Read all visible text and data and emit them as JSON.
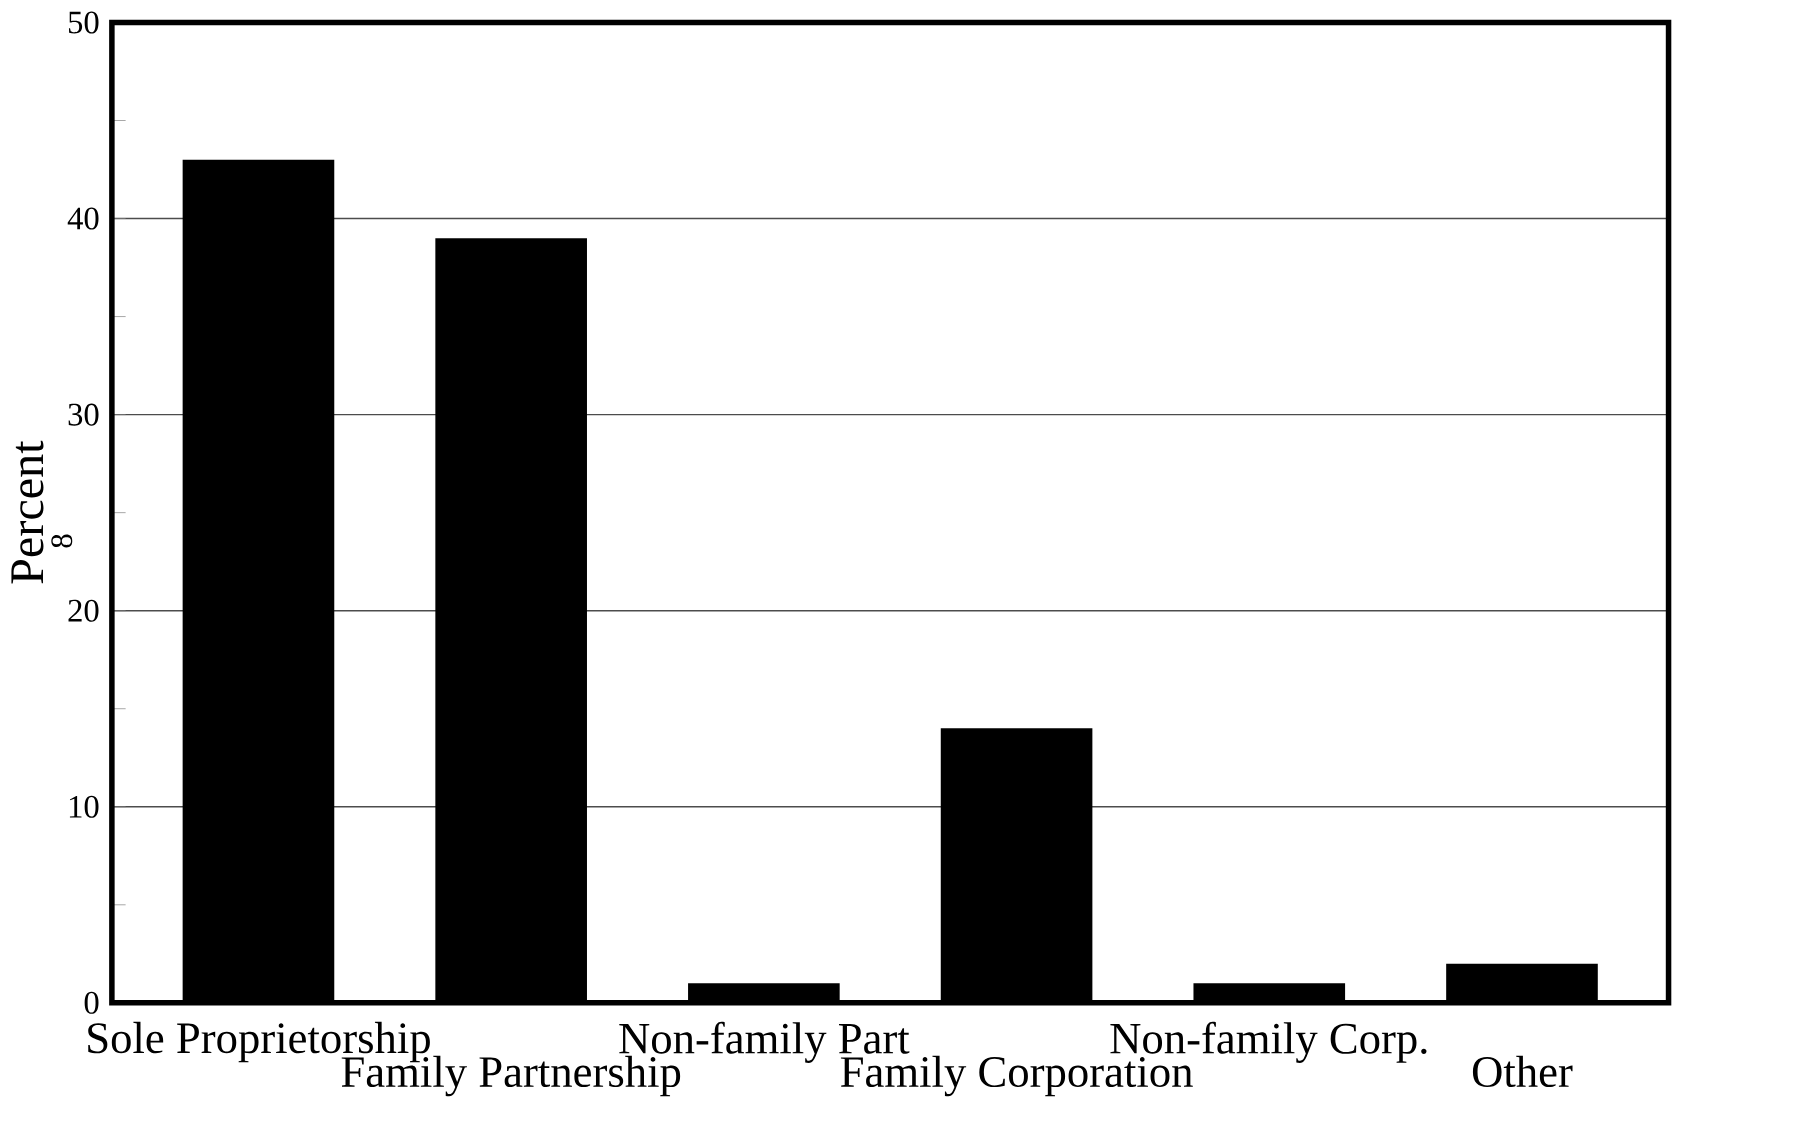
{
  "chart_data": {
    "type": "bar",
    "ylabel": "Percent",
    "categories": [
      "Sole Proprietorship",
      "Family Partnership",
      "Non-family Part",
      "Family Corporation",
      "Non-family Corp.",
      "Other"
    ],
    "values": [
      43,
      39,
      1,
      14,
      1,
      2
    ],
    "color": "#000000",
    "ylim": [
      0,
      50
    ],
    "yticks": [
      0,
      {
        "value": 5,
        "label": null
      },
      10,
      {
        "value": 15,
        "label": null
      },
      20,
      {
        "value": 25,
        "label": null
      },
      30,
      {
        "value": 35,
        "label": null
      },
      40,
      {
        "value": 45,
        "label": null
      },
      50
    ],
    "grid": "y",
    "annotations": [
      "8"
    ]
  }
}
